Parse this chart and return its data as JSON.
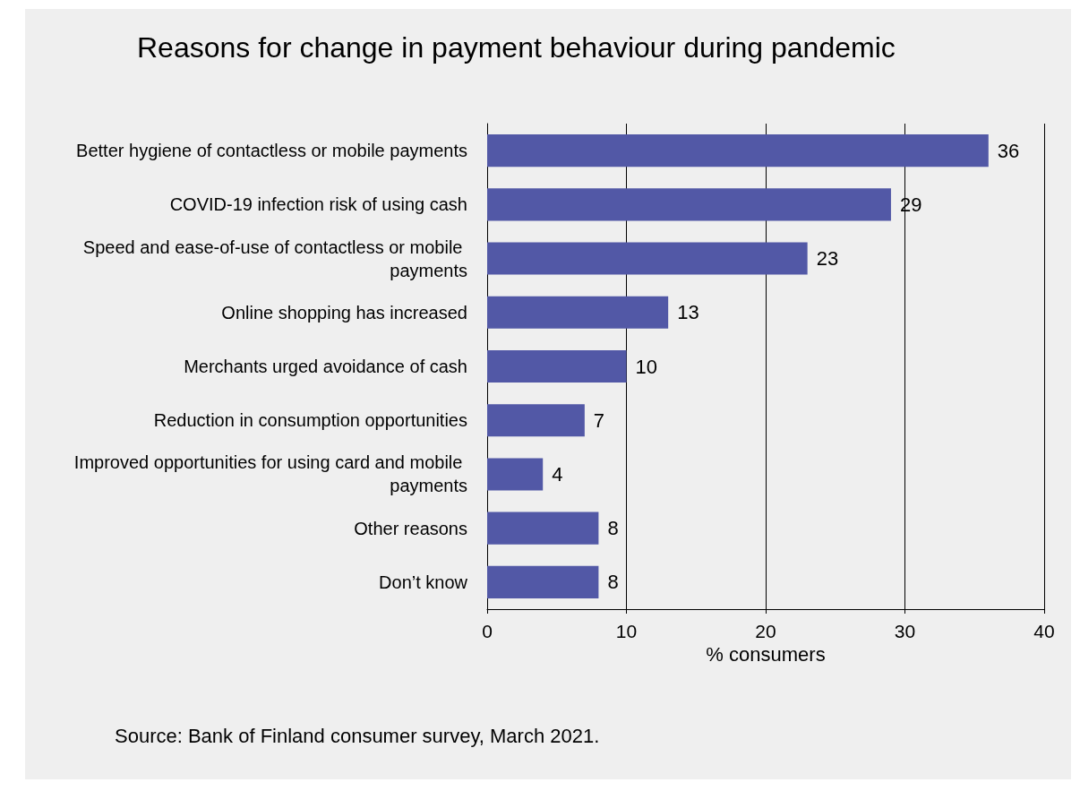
{
  "chart_data": {
    "type": "bar",
    "orientation": "horizontal",
    "title": "Reasons for change in payment behaviour during pandemic",
    "xlabel": "% consumers",
    "categories": [
      "Better hygiene of contactless or mobile payments",
      "COVID-19 infection risk of using cash",
      "Speed and ease-of-use of contactless or mobile payments",
      "Online shopping has increased",
      "Merchants urged avoidance of cash",
      "Reduction in consumption opportunities",
      "Improved opportunities for using card and mobile payments",
      "Other reasons",
      "Don’t know"
    ],
    "values": [
      36,
      29,
      23,
      13,
      10,
      7,
      4,
      8,
      8
    ],
    "color": "#5258a6",
    "xlim": [
      0,
      40
    ],
    "xticks": [
      0,
      10,
      20,
      30,
      40
    ],
    "grid": "x",
    "data_labels": true,
    "annotations": [
      "Source: Bank of Finland consumer survey, March 2021."
    ]
  }
}
